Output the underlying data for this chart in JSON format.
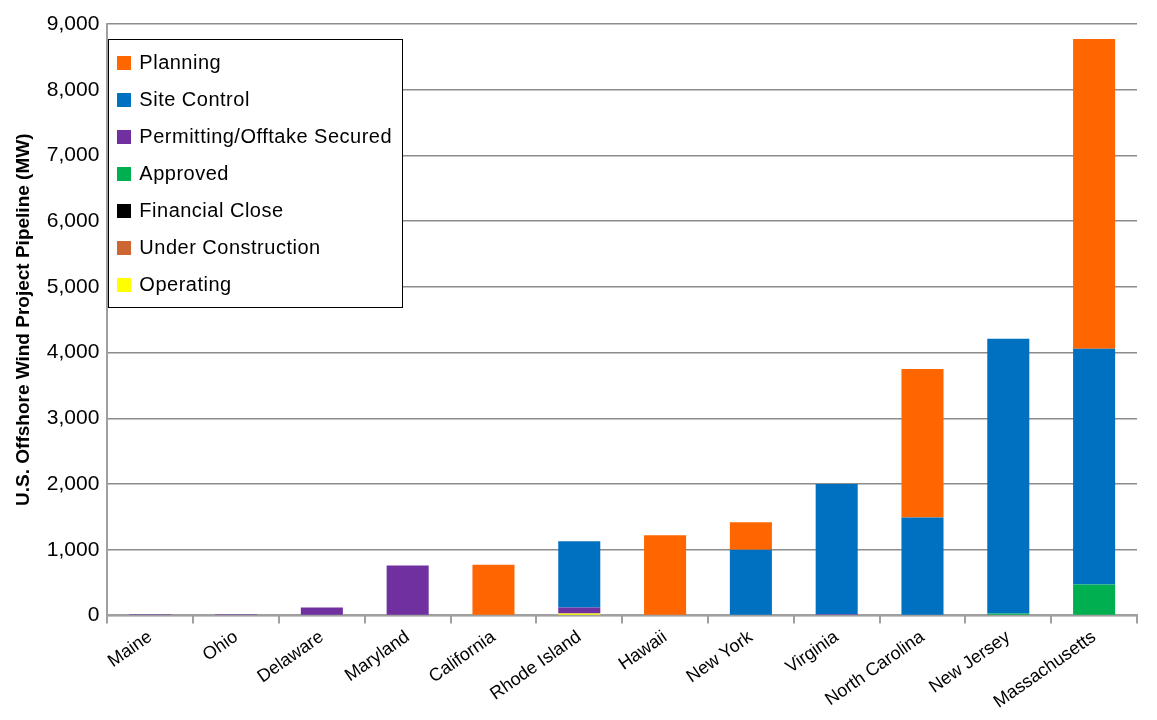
{
  "chart_data": {
    "type": "bar",
    "stacked": true,
    "ylabel": "U.S. Offshore Wind Project Pipeline (MW)",
    "categories": [
      "Maine",
      "Ohio",
      "Delaware",
      "Maryland",
      "California",
      "Rhode Island",
      "Hawaii",
      "New York",
      "Virginia",
      "North Carolina",
      "New Jersey",
      "Massachusetts"
    ],
    "series": [
      {
        "name": "Operating",
        "color": "#ffff00",
        "values": [
          0,
          0,
          0,
          0,
          0,
          30,
          0,
          0,
          0,
          0,
          0,
          0
        ]
      },
      {
        "name": "Under Construction",
        "color": "#cc6633",
        "values": [
          0,
          0,
          0,
          0,
          0,
          0,
          0,
          0,
          0,
          0,
          0,
          0
        ]
      },
      {
        "name": "Financial Close",
        "color": "#000000",
        "values": [
          0,
          0,
          0,
          0,
          0,
          0,
          0,
          0,
          0,
          0,
          0,
          0
        ]
      },
      {
        "name": "Approved",
        "color": "#00b050",
        "values": [
          0,
          0,
          0,
          0,
          0,
          0,
          0,
          0,
          0,
          0,
          30,
          470
        ]
      },
      {
        "name": "Permitting/Offtake Secured",
        "color": "#7030a0",
        "values": [
          20,
          20,
          120,
          760,
          0,
          90,
          0,
          0,
          20,
          0,
          0,
          0
        ]
      },
      {
        "name": "Site Control",
        "color": "#0070c0",
        "values": [
          0,
          0,
          0,
          0,
          0,
          1010,
          0,
          1000,
          1980,
          1490,
          4180,
          3590
        ]
      },
      {
        "name": "Planning",
        "color": "#ff6600",
        "values": [
          0,
          0,
          0,
          0,
          770,
          0,
          1220,
          420,
          0,
          2260,
          0,
          4710
        ]
      }
    ],
    "ylim": [
      0,
      9000
    ],
    "yticks": [
      0,
      {
        "value": 1000,
        "label": "1,000"
      },
      {
        "value": 2000,
        "label": "2,000"
      },
      {
        "value": 3000,
        "label": "3,000"
      },
      {
        "value": 4000,
        "label": "4,000"
      },
      {
        "value": 5000,
        "label": "5,000"
      },
      {
        "value": 6000,
        "label": "6,000"
      },
      {
        "value": 7000,
        "label": "7,000"
      },
      {
        "value": 8000,
        "label": "8,000"
      },
      {
        "value": 9000,
        "label": "9,000"
      }
    ],
    "grid": "y",
    "legend": "top left"
  }
}
